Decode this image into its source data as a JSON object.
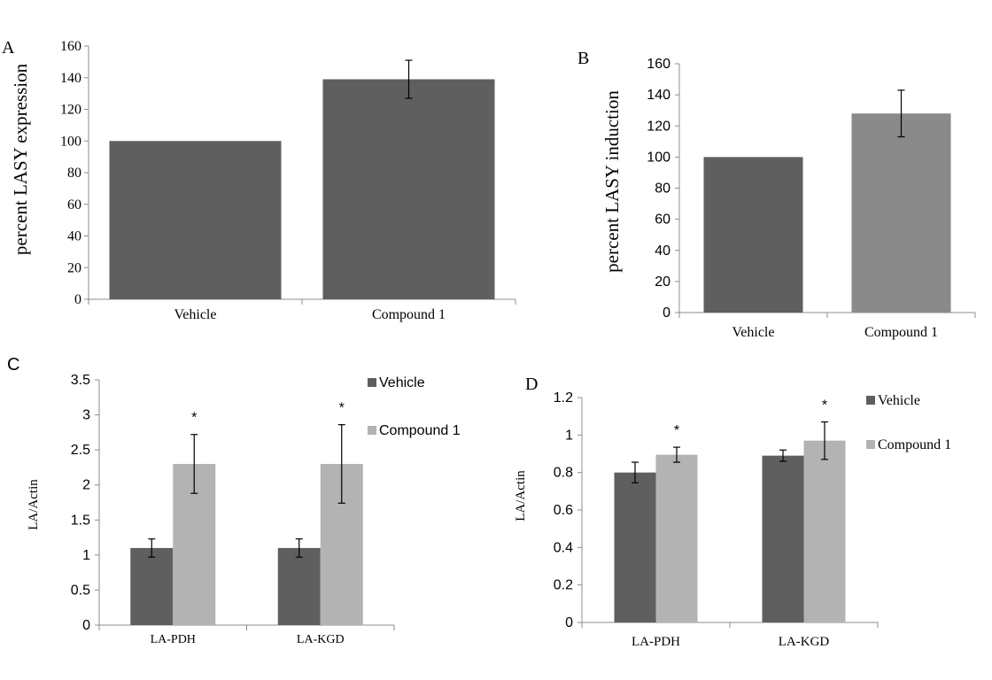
{
  "panels": [
    "A",
    "B",
    "C",
    "D"
  ],
  "chart_data": [
    {
      "panel": "A",
      "type": "bar",
      "categories": [
        "Vehicle",
        "Compound 1"
      ],
      "values": [
        100,
        139
      ],
      "errors": [
        0,
        12
      ],
      "colors": [
        "#5f5f5f",
        "#5f5f5f"
      ],
      "ylabel": "percent LASY expression",
      "ylim": [
        0,
        160
      ],
      "yticks": [
        "0",
        "20",
        "40",
        "60",
        "80",
        "100",
        "120",
        "140",
        "160"
      ],
      "grid": false
    },
    {
      "panel": "B",
      "type": "bar",
      "categories": [
        "Vehicle",
        "Compound 1"
      ],
      "values": [
        100,
        128
      ],
      "errors": [
        0,
        15
      ],
      "colors": [
        "#5f5f5f",
        "#8a8a8a"
      ],
      "ylabel": "percent LASY induction",
      "ylim": [
        0,
        160
      ],
      "yticks": [
        "0",
        "20",
        "40",
        "60",
        "80",
        "100",
        "120",
        "140",
        "160"
      ],
      "grid": false
    },
    {
      "panel": "C",
      "type": "bar",
      "categories": [
        "LA-PDH",
        "LA-KGD"
      ],
      "series": [
        {
          "name": "Vehicle",
          "values": [
            1.1,
            1.1
          ],
          "errors": [
            0.13,
            0.13
          ],
          "color": "#5f5f5f"
        },
        {
          "name": "Compound 1",
          "values": [
            2.3,
            2.3
          ],
          "errors": [
            0.42,
            0.56
          ],
          "color": "#b3b3b3"
        }
      ],
      "significance": [
        [
          "",
          "*"
        ],
        [
          "",
          "*"
        ]
      ],
      "ylabel": "LA/Actin",
      "ylim": [
        0,
        3.5
      ],
      "yticks": [
        "0",
        "0.5",
        "1",
        "1.5",
        "2",
        "2.5",
        "3",
        "3.5"
      ],
      "legend": "top-right",
      "grid": false
    },
    {
      "panel": "D",
      "type": "bar",
      "categories": [
        "LA-PDH",
        "LA-KGD"
      ],
      "series": [
        {
          "name": "Vehicle",
          "values": [
            0.8,
            0.89
          ],
          "errors": [
            0.055,
            0.03
          ],
          "color": "#5f5f5f"
        },
        {
          "name": "Compound 1",
          "values": [
            0.895,
            0.97
          ],
          "errors": [
            0.04,
            0.1
          ],
          "color": "#b3b3b3"
        }
      ],
      "significance": [
        [
          "",
          "*"
        ],
        [
          "",
          "*"
        ]
      ],
      "ylabel": "LA/Actin",
      "ylim": [
        0,
        1.2
      ],
      "yticks": [
        "0",
        "0.2",
        "0.4",
        "0.6",
        "0.8",
        "1",
        "1.2"
      ],
      "legend": "top-right",
      "grid": false
    }
  ]
}
